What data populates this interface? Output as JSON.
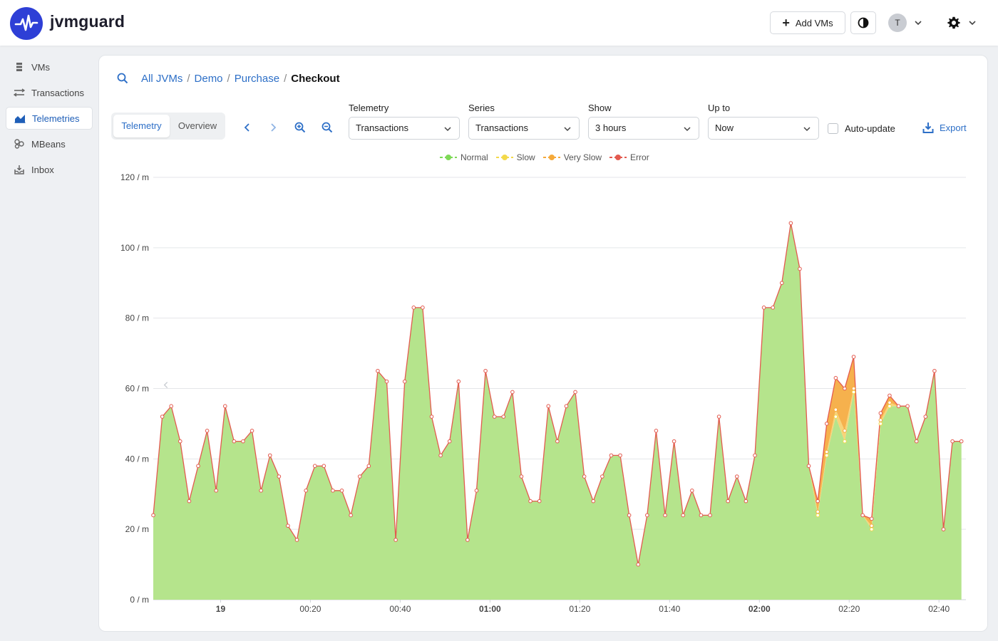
{
  "header": {
    "brand": "jvmguard",
    "add_vms_label": "Add VMs",
    "user_initial": "T"
  },
  "sidebar": {
    "items": [
      {
        "label": "VMs",
        "icon": "server-icon",
        "active": false
      },
      {
        "label": "Transactions",
        "icon": "transactions-icon",
        "active": false
      },
      {
        "label": "Telemetries",
        "icon": "area-chart-icon",
        "active": true
      },
      {
        "label": "MBeans",
        "icon": "beans-icon",
        "active": false
      },
      {
        "label": "Inbox",
        "icon": "inbox-icon",
        "active": false
      }
    ]
  },
  "breadcrumb": {
    "items": [
      "All JVMs",
      "Demo",
      "Purchase"
    ],
    "current": "Checkout"
  },
  "view_toggle": {
    "options": [
      "Telemetry",
      "Overview"
    ],
    "selected": "Telemetry"
  },
  "filters": {
    "telemetry": {
      "label": "Telemetry",
      "value": "Transactions"
    },
    "series": {
      "label": "Series",
      "value": "Transactions"
    },
    "show": {
      "label": "Show",
      "value": "3 hours"
    },
    "up_to": {
      "label": "Up to",
      "value": "Now"
    }
  },
  "auto_update": {
    "label": "Auto-update",
    "checked": false
  },
  "export_label": "Export",
  "colors": {
    "accent": "#2d6fc7",
    "normal": "#7ed957",
    "slow": "#f3d94a",
    "very_slow": "#f5a93a",
    "error": "#e35a4f",
    "area_normal": "#b5e48c",
    "area_slow": "#f6cf6b"
  },
  "chart_data": {
    "type": "area",
    "legend_position": "top-center",
    "grid": true,
    "y_unit": "/ m",
    "ylim": [
      0,
      120
    ],
    "y_ticks": [
      0,
      20,
      40,
      60,
      80,
      100,
      120
    ],
    "x_tick_labels": [
      "19",
      "00:20",
      "00:40",
      "01:00",
      "01:20",
      "01:40",
      "02:00",
      "02:20",
      "02:40"
    ],
    "x_tick_bold": [
      true,
      false,
      false,
      true,
      false,
      false,
      true,
      false,
      false
    ],
    "x_tick_minutes": [
      0,
      20,
      40,
      60,
      80,
      100,
      120,
      140,
      160
    ],
    "x_range_minutes": [
      -15,
      166
    ],
    "x_step_minutes": 2,
    "x_start_minute": -15,
    "series": [
      {
        "name": "Normal",
        "values": [
          24,
          52,
          55,
          45,
          28,
          38,
          48,
          31,
          55,
          45,
          45,
          48,
          31,
          41,
          35,
          21,
          17,
          31,
          38,
          38,
          31,
          31,
          24,
          35,
          38,
          65,
          62,
          17,
          62,
          83,
          83,
          52,
          41,
          45,
          62,
          17,
          31,
          65,
          52,
          52,
          59,
          35,
          28,
          28,
          55,
          45,
          55,
          59,
          35,
          28,
          35,
          41,
          41,
          24,
          10,
          24,
          48,
          24,
          45,
          24,
          31,
          24,
          24,
          52,
          28,
          35,
          28,
          41,
          83,
          83,
          90,
          107,
          94,
          38,
          24,
          41,
          52,
          45,
          59,
          24,
          20,
          50,
          55,
          55,
          55,
          45,
          52,
          65,
          20,
          45,
          45
        ]
      },
      {
        "name": "Slow",
        "values": [
          0,
          0,
          0,
          0,
          0,
          0,
          0,
          0,
          0,
          0,
          0,
          0,
          0,
          0,
          0,
          0,
          0,
          0,
          0,
          0,
          0,
          0,
          0,
          0,
          0,
          0,
          0,
          0,
          0,
          0,
          0,
          0,
          0,
          0,
          0,
          0,
          0,
          0,
          0,
          0,
          0,
          0,
          0,
          0,
          0,
          0,
          0,
          0,
          0,
          0,
          0,
          0,
          0,
          0,
          0,
          0,
          0,
          0,
          0,
          0,
          0,
          0,
          0,
          0,
          0,
          0,
          0,
          0,
          0,
          0,
          0,
          0,
          0,
          0,
          1,
          1,
          2,
          3,
          1,
          0,
          1,
          1,
          1,
          0,
          0,
          0,
          0,
          0,
          0,
          0,
          0
        ]
      },
      {
        "name": "Very Slow",
        "values": [
          0,
          0,
          0,
          0,
          0,
          0,
          0,
          0,
          0,
          0,
          0,
          0,
          0,
          0,
          0,
          0,
          0,
          0,
          0,
          0,
          0,
          0,
          0,
          0,
          0,
          0,
          0,
          0,
          0,
          0,
          0,
          0,
          0,
          0,
          0,
          0,
          0,
          0,
          0,
          0,
          0,
          0,
          0,
          0,
          0,
          0,
          0,
          0,
          0,
          0,
          0,
          0,
          0,
          0,
          0,
          0,
          0,
          0,
          0,
          0,
          0,
          0,
          0,
          0,
          0,
          0,
          0,
          0,
          0,
          0,
          0,
          0,
          0,
          0,
          3,
          8,
          9,
          12,
          9,
          0,
          2,
          2,
          2,
          0,
          0,
          0,
          0,
          0,
          0,
          0,
          0
        ]
      },
      {
        "name": "Error",
        "values": [
          0,
          0,
          0,
          0,
          0,
          0,
          0,
          0,
          0,
          0,
          0,
          0,
          0,
          0,
          0,
          0,
          0,
          0,
          0,
          0,
          0,
          0,
          0,
          0,
          0,
          0,
          0,
          0,
          0,
          0,
          0,
          0,
          0,
          0,
          0,
          0,
          0,
          0,
          0,
          0,
          0,
          0,
          0,
          0,
          0,
          0,
          0,
          0,
          0,
          0,
          0,
          0,
          0,
          0,
          0,
          0,
          0,
          0,
          0,
          0,
          0,
          0,
          0,
          0,
          0,
          0,
          0,
          0,
          0,
          0,
          0,
          0,
          0,
          0,
          0,
          0,
          0,
          0,
          0,
          0,
          0,
          0,
          0,
          0,
          0,
          0,
          0,
          0,
          0,
          0,
          0
        ]
      }
    ]
  }
}
